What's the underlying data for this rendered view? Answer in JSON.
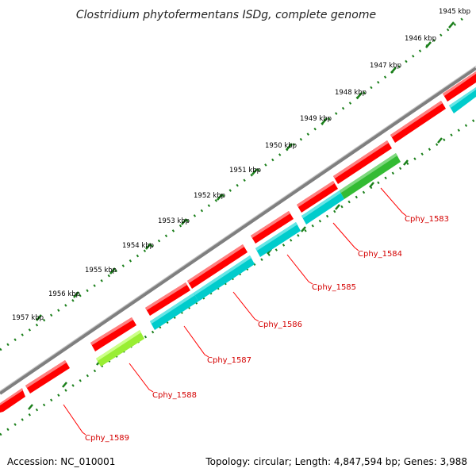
{
  "title": "Clostridium phytofermentans ISDg, complete genome",
  "accession": "Accession: NC_010001",
  "summary": "Topology: circular; Length: 4,847,594 bp; Genes: 3,988",
  "scale_labels": [
    "1945 kbp",
    "1946 kbp",
    "1947 kbp",
    "1948 kbp",
    "1949 kbp",
    "1950 kbp",
    "1951 kbp",
    "1952 kbp",
    "1953 kbp",
    "1954 kbp",
    "1955 kbp",
    "1956 kbp",
    "1957 kbp"
  ],
  "gene_labels": [
    "Cphy_1583",
    "Cphy_1584",
    "Cphy_1585",
    "Cphy_1586",
    "Cphy_1587",
    "Cphy_1588",
    "Cphy_1589"
  ],
  "colors": {
    "backbone": "#7f7f7f",
    "cds_forward": "#ff0000",
    "cds_reverse": "#00cccc",
    "feature_green": "#33bb33",
    "feature_lime": "#99ee33",
    "ticks": "#1a7f1a",
    "label_line": "#ff0000",
    "label_text": "#d40000"
  }
}
